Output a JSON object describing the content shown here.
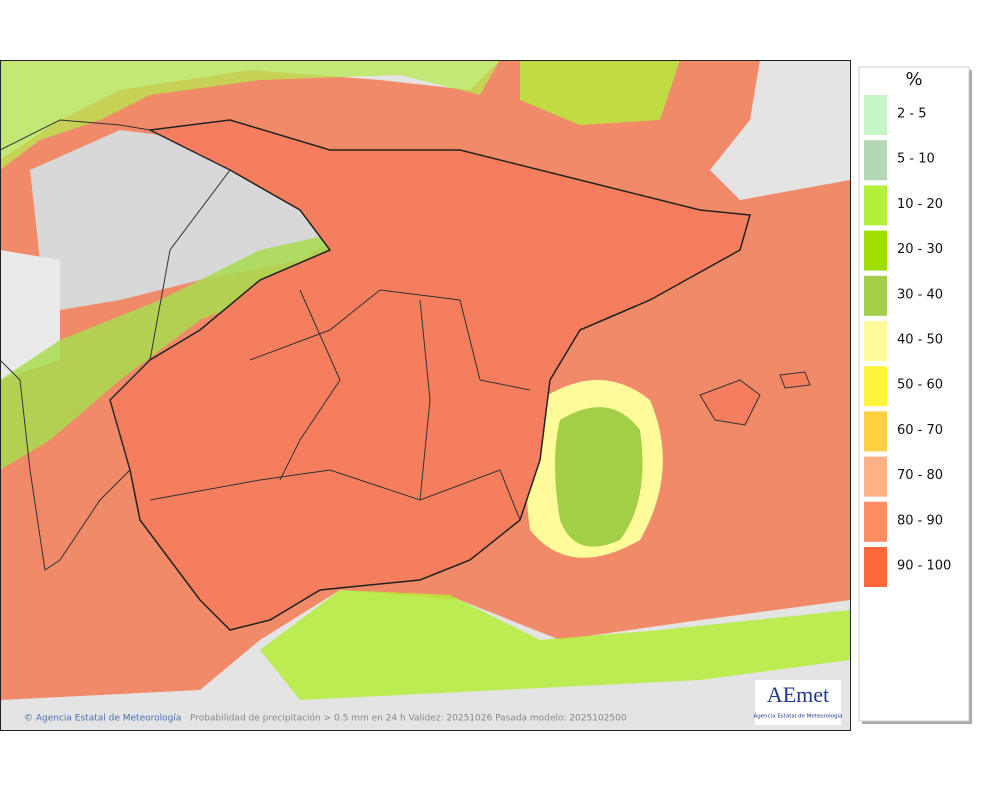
{
  "map": {
    "footer": {
      "credit": "© Agencia Estatal de Meteorología",
      "caption": "Probabilidad de precipitación > 0.5 mm en 24 h Validez: 20251026 Pasada modelo: 2025102500"
    },
    "logo": {
      "name": "AEmet",
      "subtitle": "Agencia Estatal de Meteorología"
    },
    "legend": {
      "title": "%",
      "items": [
        {
          "label": "2 - 5",
          "color": "#c6f6c6"
        },
        {
          "label": "5 - 10",
          "color": "#b4d8b4"
        },
        {
          "label": "10 - 20",
          "color": "#b4ef3a"
        },
        {
          "label": "20 - 30",
          "color": "#9ede00"
        },
        {
          "label": "30 - 40",
          "color": "#a2cf46"
        },
        {
          "label": "40 - 50",
          "color": "#fffa9a"
        },
        {
          "label": "50 - 60",
          "color": "#fff43a"
        },
        {
          "label": "60 - 70",
          "color": "#ffd040"
        },
        {
          "label": "70 - 80",
          "color": "#ffb084"
        },
        {
          "label": "80 - 90",
          "color": "#ff8c62"
        },
        {
          "label": "90 - 100",
          "color": "#ff6838"
        }
      ]
    }
  }
}
